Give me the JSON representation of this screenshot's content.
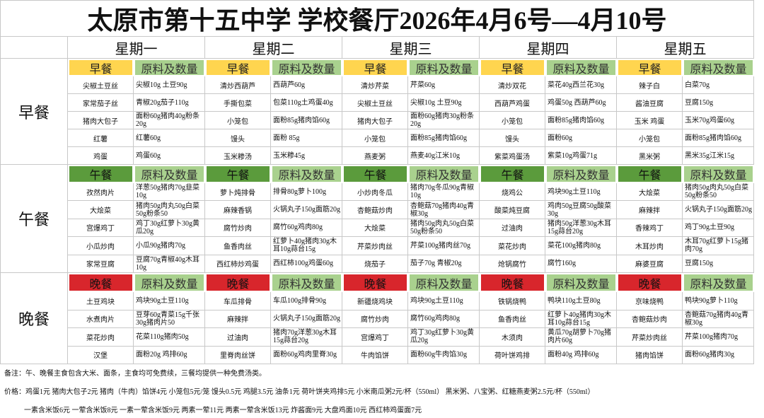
{
  "title": "太原市第十五中学 学校餐厅2026年4月6号—4月10号",
  "days": [
    "星期一",
    "星期二",
    "星期三",
    "星期四",
    "星期五"
  ],
  "ingredient_header": "原料及数量",
  "meals": [
    {
      "name": "早餐",
      "header": "早餐",
      "days": [
        [
          [
            "尖椒土豆丝",
            "尖椒10g 土豆90g"
          ],
          [
            "家常茄子丝",
            "青椒20g茄子110g"
          ],
          [
            "猪肉大包子",
            "面粉60g猪肉40g粉条20g"
          ],
          [
            "红薯",
            "红薯60g"
          ],
          [
            "鸡蛋",
            "鸡蛋60g"
          ]
        ],
        [
          [
            "清炒西葫芦",
            "西葫芦60g"
          ],
          [
            "手撕包菜",
            "包菜110g土鸡蛋40g"
          ],
          [
            "小笼包",
            "面粉85g猪肉馅60g"
          ],
          [
            "馒头",
            "面粉 85g"
          ],
          [
            "玉米糁汤",
            "玉米糁45g"
          ]
        ],
        [
          [
            "清炒芹菜",
            "芹菜60g"
          ],
          [
            "尖椒土豆丝",
            "尖椒10g 土豆90g"
          ],
          [
            "猪肉大包子",
            "面粉60g猪肉30g粉条20g"
          ],
          [
            "小笼包",
            "面粉85g猪肉馅60g"
          ],
          [
            "燕麦粥",
            "燕麦40g江米10g"
          ]
        ],
        [
          [
            "清炒双花",
            "菜花40g西兰花30g"
          ],
          [
            "西葫芦鸡蛋",
            "鸡蛋50g 西葫芦60g"
          ],
          [
            "小笼包",
            "面粉85g猪肉馅60g"
          ],
          [
            "馒头",
            "面粉60g"
          ],
          [
            "紫菜鸡蛋汤",
            "紫菜10g鸡蛋71g"
          ]
        ],
        [
          [
            "辣子白",
            "白菜70g"
          ],
          [
            "酱油豆腐",
            "豆腐150g"
          ],
          [
            "玉米 鸡蛋",
            "玉米70g鸡蛋60g"
          ],
          [
            "小笼包",
            "面粉85g猪肉馅60g"
          ],
          [
            "黑米粥",
            "黑米35g江米15g"
          ]
        ]
      ]
    },
    {
      "name": "午餐",
      "header": "午餐",
      "days": [
        [
          [
            "孜然肉片",
            "洋葱50g猪肉70g韭菜10g"
          ],
          [
            "大烩菜",
            "猪肉50g肉丸50g白菜50g粉条50"
          ],
          [
            "宫爆鸡丁",
            "鸡丁30g红萝卜30g黄瓜20g"
          ],
          [
            "小瓜炒肉",
            "小瓜90g猪肉70g"
          ],
          [
            "家常豆腐",
            "豆腐70g青椒40g木耳10g"
          ]
        ],
        [
          [
            "萝卜炖排骨",
            "排骨80g萝卜100g"
          ],
          [
            "麻辣香锅",
            "火锅丸子150g面筋20g"
          ],
          [
            "腐竹炒肉",
            "腐竹60g鸡肉80g"
          ],
          [
            "鱼香肉丝",
            "红萝卜40g猪肉30g木耳10g蒜台15g"
          ],
          [
            "西红柿炒鸡蛋",
            "西红柿100g鸡蛋60g"
          ]
        ],
        [
          [
            "小炒肉冬瓜",
            "猪肉70g冬瓜90g青椒10g"
          ],
          [
            "杏鲍菇炒肉",
            "杏鲍菇70g猪肉40g青椒30g"
          ],
          [
            "大烩菜",
            "猪肉50g肉丸50g白菜50g粉条50"
          ],
          [
            "芹菜炒肉丝",
            "芹菜100g猪肉丝70g"
          ],
          [
            "烧茄子",
            "茄子70g 青椒20g"
          ]
        ],
        [
          [
            "烧鸡公",
            "鸡块90g土豆110g"
          ],
          [
            "酸菜炖豆腐",
            "鸡肉50g豆腐50g酸菜30g"
          ],
          [
            "过油肉",
            "猪肉50g洋葱30g木耳15g蒜台20g"
          ],
          [
            "菜花炒肉",
            "菜花100g猪肉80g"
          ],
          [
            "炝锅腐竹",
            "腐竹160g"
          ]
        ],
        [
          [
            "大烩菜",
            "猪肉50g肉丸50g白菜50g粉条50"
          ],
          [
            "麻辣拌",
            "火锅丸子150g面筋20g"
          ],
          [
            "香辣鸡丁",
            "鸡丁90g土豆90g"
          ],
          [
            "木耳炒肉",
            "木耳70g红萝卜15g猪肉70g"
          ],
          [
            "麻婆豆腐",
            "豆腐150g"
          ]
        ]
      ]
    },
    {
      "name": "晚餐",
      "header": "晚餐",
      "days": [
        [
          [
            "土豆鸡块",
            "鸡块90g土豆110g"
          ],
          [
            "水煮肉片",
            "豆芽60g青菜15g千张30g猪肉片50"
          ],
          [
            "菜花炒肉",
            "花菜110g猪肉50g"
          ],
          [
            "汉堡",
            "面粉20g 鸡排60g"
          ]
        ],
        [
          [
            "车瓜排骨",
            "车瓜100g排骨90g"
          ],
          [
            "麻辣拌",
            "火锅丸子150g面筋20g"
          ],
          [
            "过油肉",
            "猪肉70g洋葱30g木耳15g蒜台20g"
          ],
          [
            "里脊肉丝饼",
            "面粉60g鸡肉里脊30g"
          ]
        ],
        [
          [
            "新疆烧鸡块",
            "鸡块90g土豆110g"
          ],
          [
            "腐竹炒肉",
            "腐竹60g鸡肉80g"
          ],
          [
            "宫爆鸡丁",
            "鸡丁30g红萝卜30g黄瓜20g"
          ],
          [
            "牛肉馅饼",
            "面粉60g牛肉馅30g"
          ]
        ],
        [
          [
            "铁锅烧鸭",
            "鸭块110g土豆80g"
          ],
          [
            "鱼香肉丝",
            "红萝卜40g猪肉30g木耳10g蒜台15g"
          ],
          [
            "木须肉",
            "黄瓜70g胡萝卜70g猪肉片60g"
          ],
          [
            "荷叶饼鸡排",
            "面粉40g 鸡排60g"
          ]
        ],
        [
          [
            "京味烧鸭",
            "鸭块90g萝卜110g"
          ],
          [
            "杏鲍菇炒肉",
            "杏鲍菇70g猪肉40g青椒30g"
          ],
          [
            "芹菜炒肉丝",
            "芹菜100g猪肉70g"
          ],
          [
            "猪肉馅饼",
            "面粉60g猪肉30g"
          ]
        ]
      ]
    }
  ],
  "notes": [
    "备注：午、晚餐主食包含大米、面条，主食均可免费续，三餐均提供一种免费汤类。",
    "价格：鸡蛋1元 猪肉大包子2元 猪肉（牛肉）馅饼4元 小笼包5元/笼 馒头0.5元 鸡腿3.5元 油条1元 荷叶饼夹鸡排5元 小米南瓜粥2元/杯（550ml） 黑米粥、八宝粥、红糖燕麦粥2.5元/杯（550ml）",
    "鸡蛋1元 猪肉大包子2元 猪肉（牛肉）馅饼4元 小笼包5元/笼 馒头0.5元 鸡腿3.5元 油条1元 荷叶饼夹鸡排5元 小米南瓜粥2元/杯（550ml） 黑米粥、八宝粥、红糖燕麦粥2.5元/杯（550ml）",
    "一素含米饭6元 一荤含米饭8元 一素一荤含米饭9元 两素一荤11元 两素一荤含米饭13元 炸酱面9元 大盘鸡面10元 西红柿鸡蛋面7元"
  ]
}
